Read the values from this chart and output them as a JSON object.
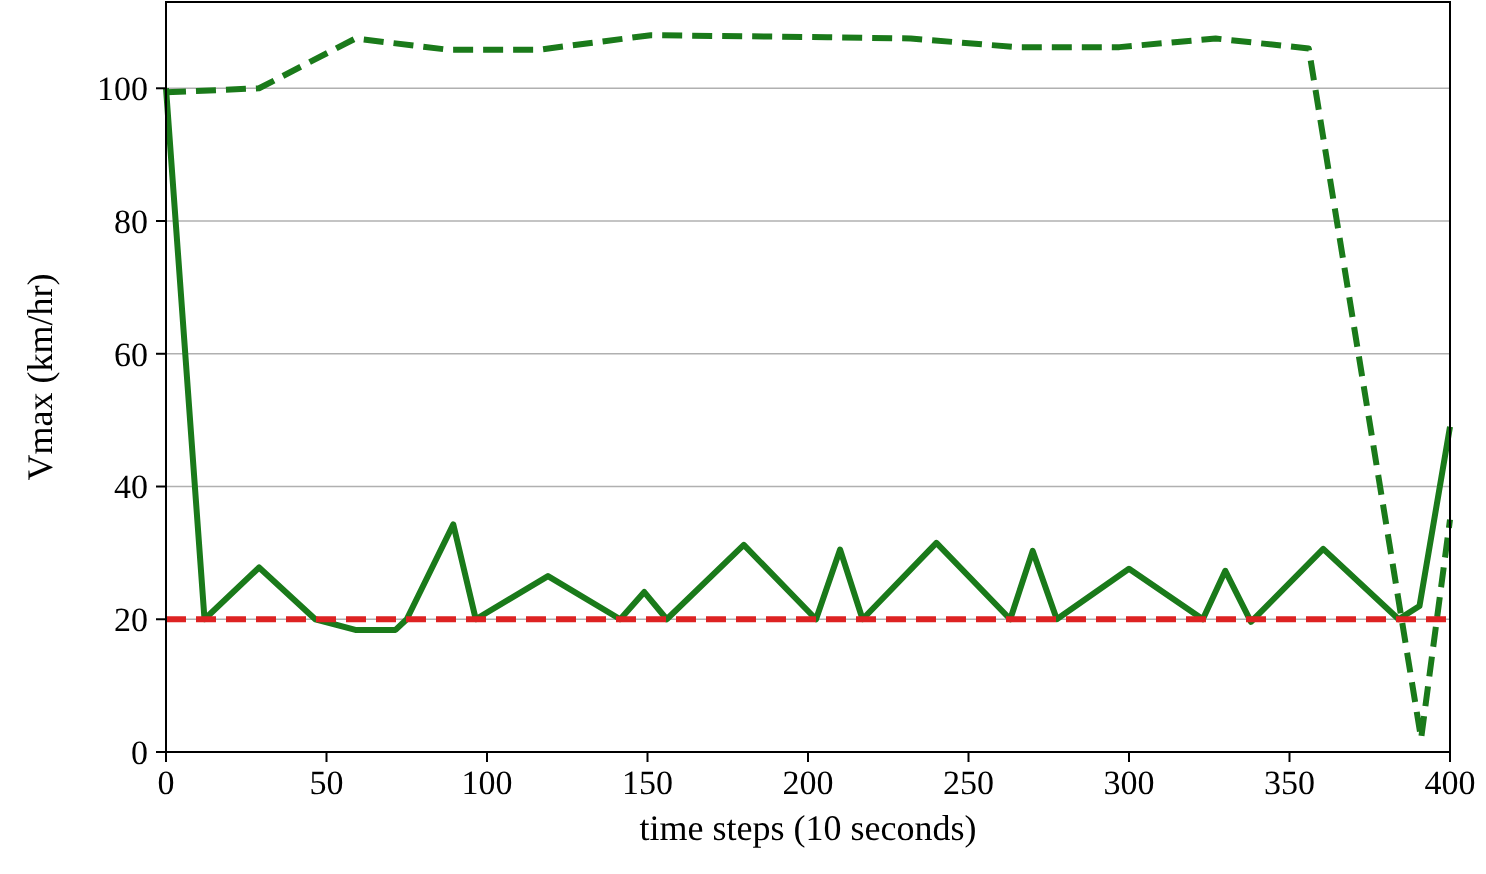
{
  "chart_data": {
    "type": "line",
    "xlabel": "time steps (10 seconds)",
    "ylabel": "Vmax (km/hr)",
    "xlim": [
      0,
      400
    ],
    "ylim": [
      0,
      113
    ],
    "xticks": [
      0,
      50,
      100,
      150,
      200,
      250,
      300,
      350,
      400
    ],
    "yticks": [
      0,
      20,
      40,
      60,
      80,
      100
    ],
    "grid": "y",
    "marker": "none",
    "series": [
      {
        "color": "#1a7a1a",
        "line_style": "dashed",
        "x": [
          0,
          29,
          59,
          88,
          116,
          151,
          206,
          232,
          265,
          297,
          327,
          356,
          391,
          400
        ],
        "values": [
          99.4,
          100,
          107.5,
          105.8,
          105.8,
          108,
          107.7,
          107.5,
          106.2,
          106.2,
          107.5,
          106,
          2,
          35
        ]
      },
      {
        "color": "#1a7a1a",
        "line_style": "solid",
        "x": [
          0,
          12,
          29,
          46.5,
          59,
          71.5,
          75,
          89.5,
          96.5,
          119,
          141.5,
          149,
          156,
          180,
          202.5,
          210,
          217,
          240,
          263,
          270,
          277.5,
          300,
          323,
          330,
          338,
          360.5,
          384,
          390.5,
          400
        ],
        "values": [
          100,
          20,
          27.8,
          20,
          18.4,
          18.4,
          20,
          34.3,
          20,
          26.5,
          20,
          24.1,
          20,
          31.2,
          20,
          30.5,
          20,
          31.5,
          20,
          30.3,
          20,
          27.6,
          20,
          27.3,
          19.6,
          30.6,
          20,
          22,
          49
        ]
      }
    ],
    "ref_lines": [
      {
        "axis": "y",
        "value": 20,
        "color": "#dd2222",
        "line_style": "dashed"
      }
    ]
  }
}
